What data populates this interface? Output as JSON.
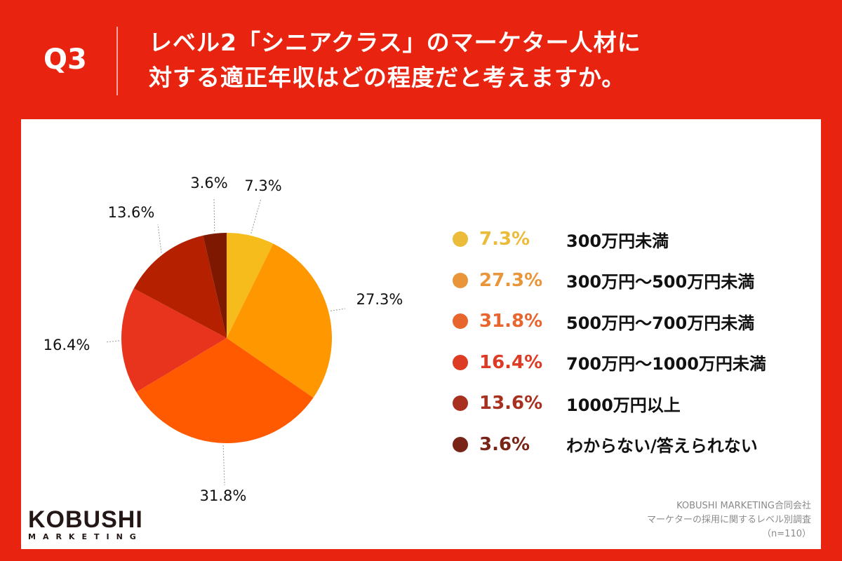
{
  "header": {
    "question": "Q3",
    "title_line1": "レベル2「シニアクラス」のマーケター人材に",
    "title_line2": "対する適正年収はどの程度だと考えますか。",
    "background_color": "#E8230F"
  },
  "chart_data": {
    "type": "pie",
    "categories": [
      "300万円未満",
      "300万円〜500万円未満",
      "500万円〜700万円未満",
      "700万円〜1000万円未満",
      "1000万円以上",
      "わからない/答えられない"
    ],
    "values": [
      7.3,
      27.3,
      31.8,
      16.4,
      13.6,
      3.6
    ],
    "labels": [
      "7.3%",
      "27.3%",
      "31.8%",
      "16.4%",
      "13.6%",
      "3.6%"
    ],
    "slice_colors": [
      "#F5BC1C",
      "#FF9800",
      "#FF5A00",
      "#E8341C",
      "#B52000",
      "#7E1800"
    ],
    "legend_colors": [
      "#EBBB3A",
      "#E9963A",
      "#E8652E",
      "#DD3B24",
      "#A8301F",
      "#7A2417"
    ],
    "legend_placement": "right",
    "start": "12 o'clock clockwise"
  },
  "logo": {
    "name": "KOBUSHI",
    "sub": "MARKETING"
  },
  "source": {
    "line1": "KOBUSHI MARKETING合同会社",
    "line2": "マーケターの採用に関するレベル別調査",
    "line3": "（n=110）"
  }
}
